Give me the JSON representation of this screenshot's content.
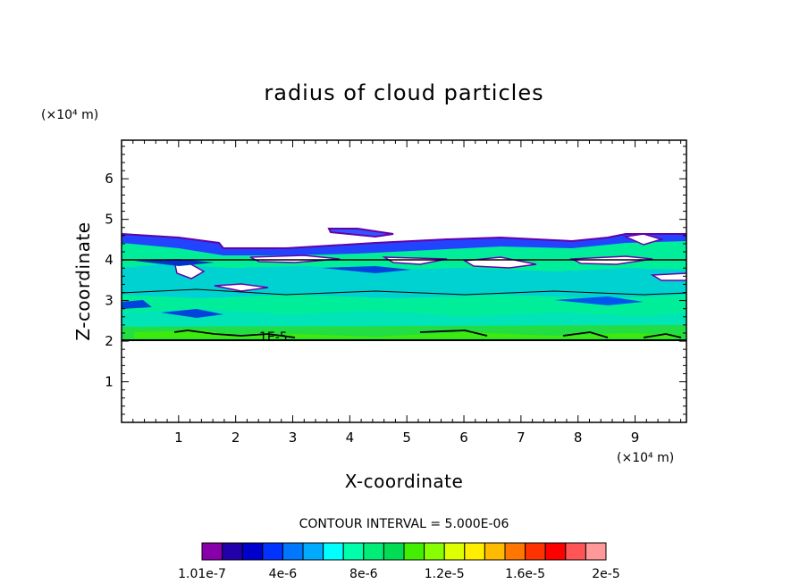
{
  "chart_data": {
    "type": "heatmap",
    "title": "radius of cloud particles",
    "xlabel": "X-coordinate",
    "ylabel": "Z-coordinate",
    "x_unit": "(×10⁴ m)",
    "y_unit": "(×10⁴ m)",
    "x_ticks": [
      "1",
      "2",
      "3",
      "4",
      "5",
      "6",
      "7",
      "8",
      "9"
    ],
    "y_ticks": [
      "1",
      "2",
      "3",
      "4",
      "5",
      "6"
    ],
    "xlim": [
      0,
      9.9
    ],
    "ylim": [
      0,
      6.95
    ],
    "contour_interval_text": "CONTOUR INTERVAL = 5.000E-06",
    "contour_label": "1E-5",
    "colorbar": {
      "colors": [
        "#8800aa",
        "#2200aa",
        "#0000cc",
        "#0033ff",
        "#0077ff",
        "#00aaff",
        "#00ffff",
        "#00ffaa",
        "#00ee77",
        "#00dd55",
        "#44ee00",
        "#88ff00",
        "#ddff00",
        "#ffee00",
        "#ffbb00",
        "#ff7700",
        "#ff3300",
        "#ff0000",
        "#ff5555",
        "#ff9999"
      ],
      "tick_labels": [
        "1.01e-7",
        "4e-6",
        "8e-6",
        "1.2e-5",
        "1.6e-5",
        "2e-5"
      ]
    },
    "cloud_layer_z_range": [
      2.05,
      4.7
    ],
    "dominant_values": "approximately 6e-6 to 1.2e-5 throughout the layer, up to ~1.3e-5 near the cloud base (z≈2.1–2.3)"
  }
}
